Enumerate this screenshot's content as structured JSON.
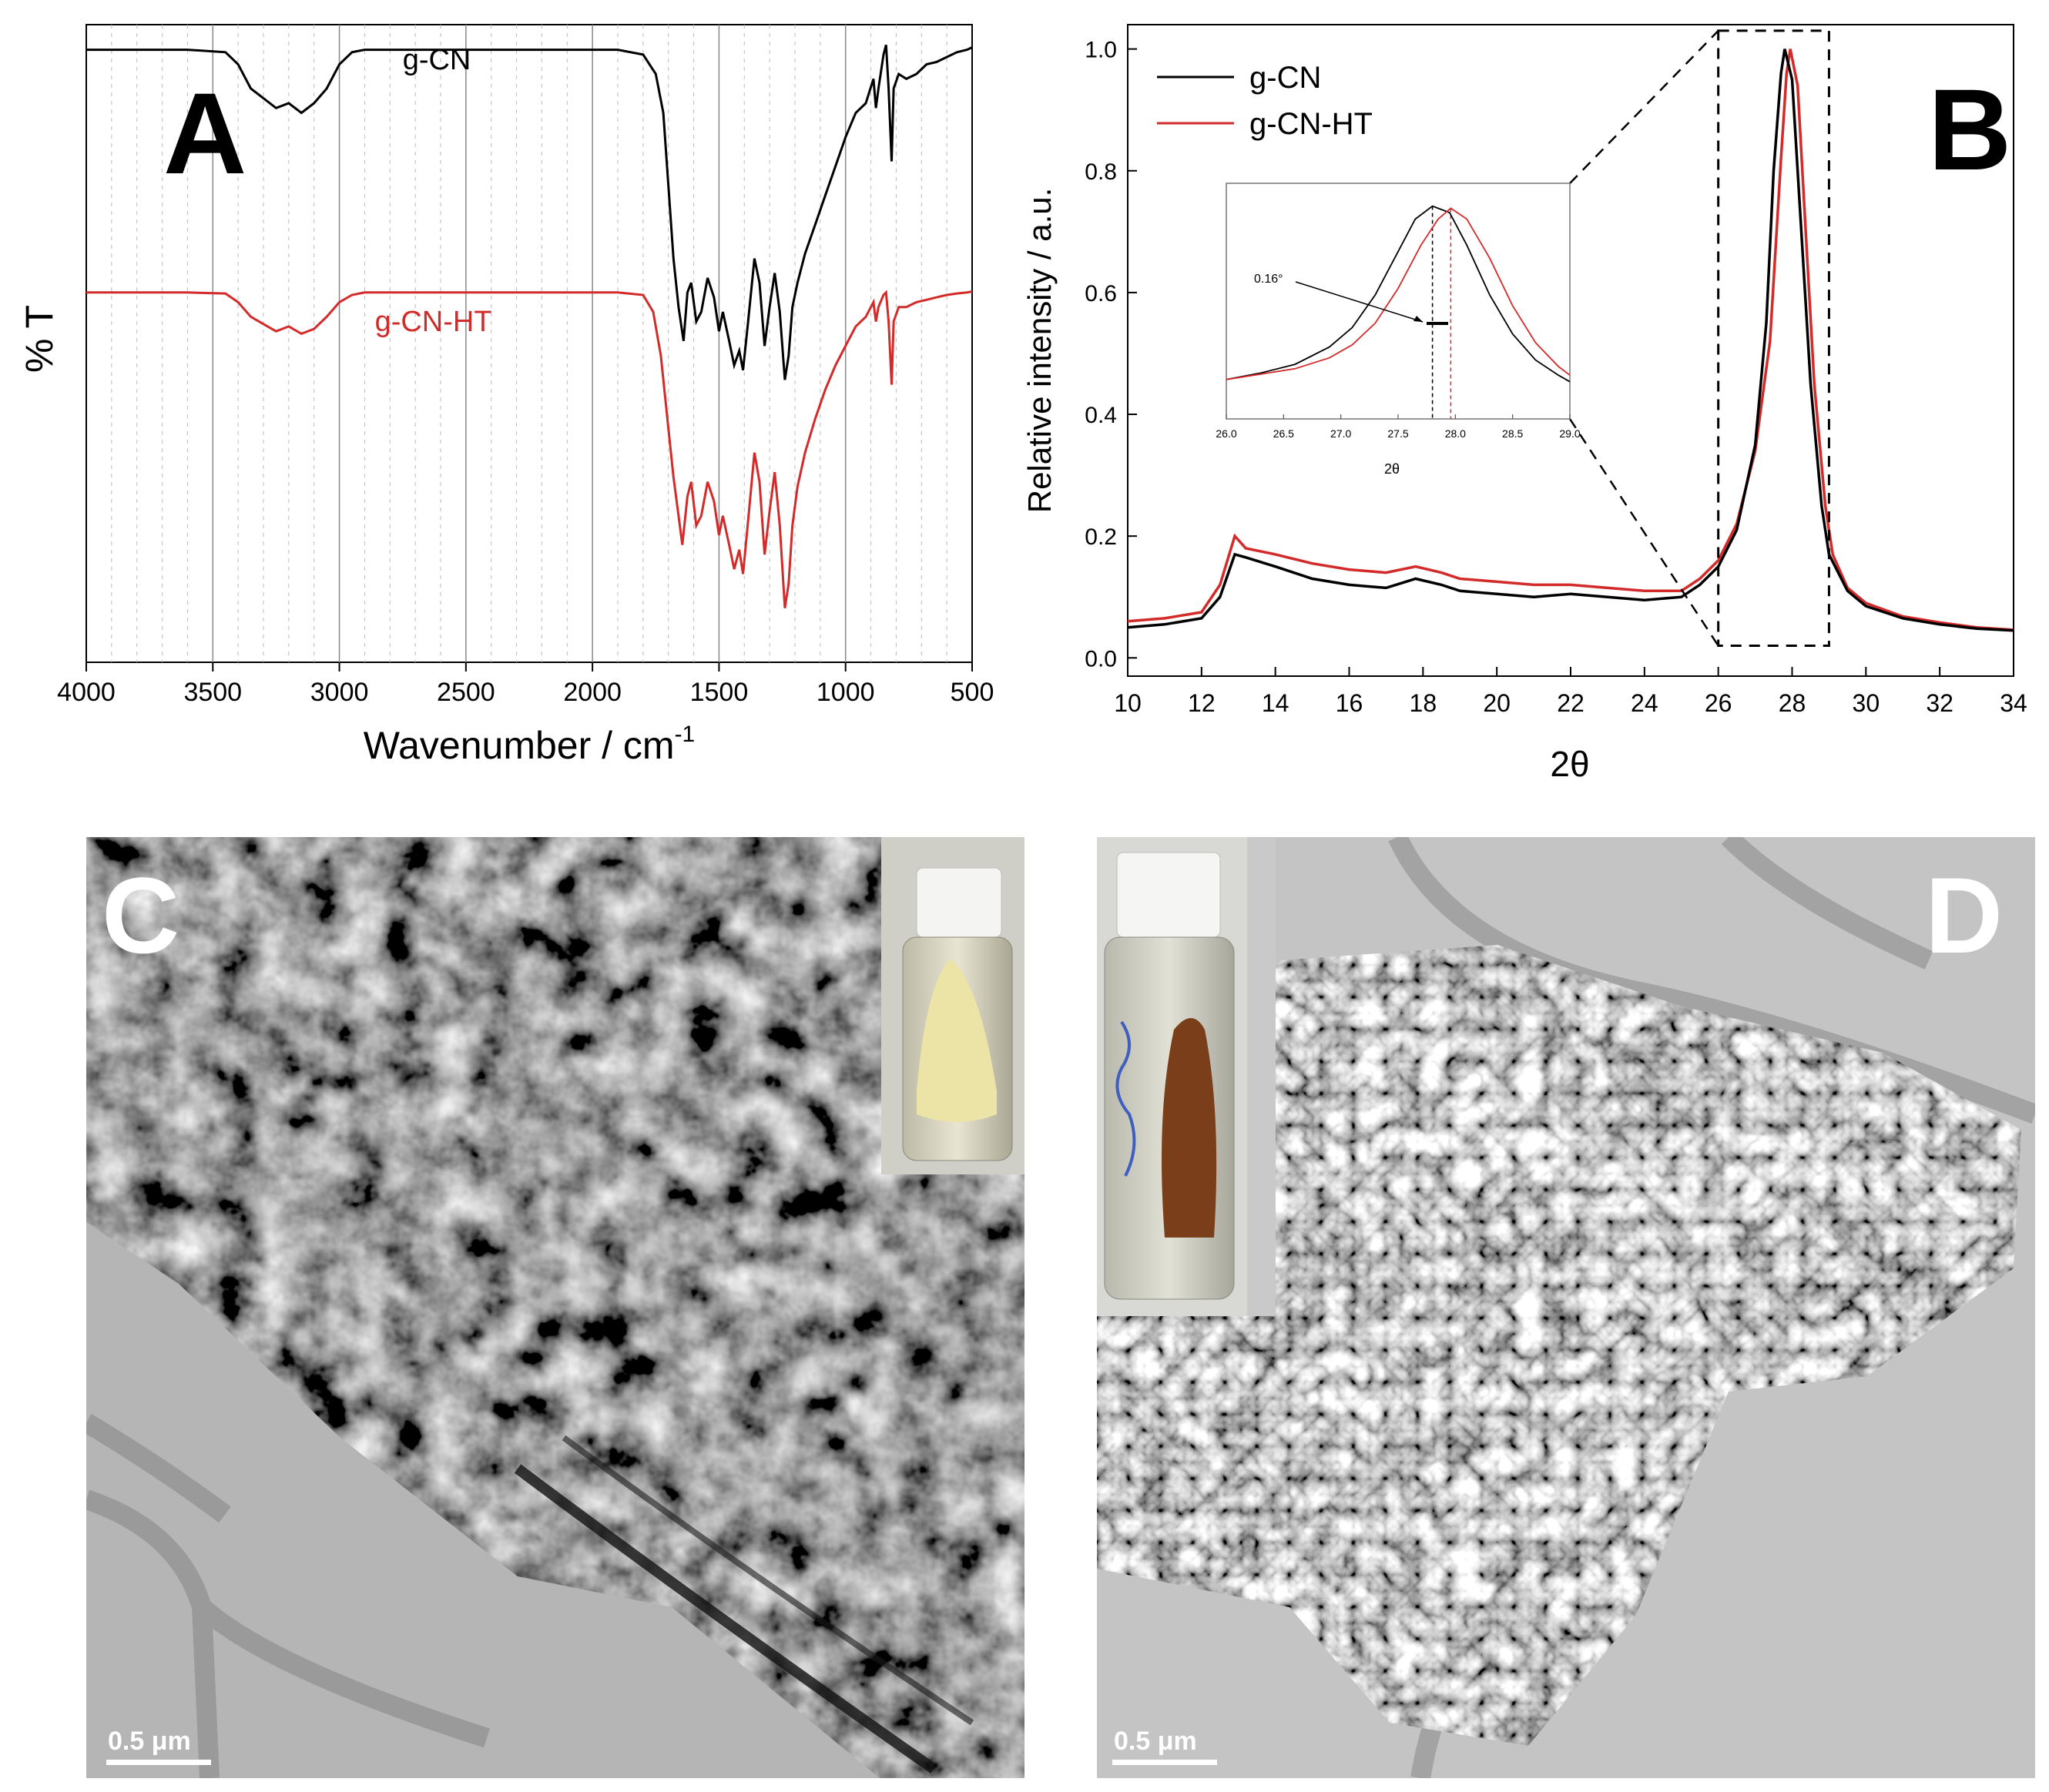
{
  "panel_a": {
    "letter": "A",
    "chart_data": {
      "type": "line",
      "title": "",
      "xlabel": "Wavenumber / cm",
      "xlabel_sup": "-1",
      "ylabel": "% T",
      "xlim": [
        4000,
        500
      ],
      "x_reversed": true,
      "xticks": [
        "4000",
        "3500",
        "3000",
        "2500",
        "2000",
        "1500",
        "1000",
        "500"
      ],
      "grid": "vertical",
      "series": [
        {
          "name": "g-CN",
          "color": "#000000",
          "label_at": [
            2750,
            0.94
          ],
          "points": [
            [
              4000,
              0.98
            ],
            [
              3600,
              0.98
            ],
            [
              3450,
              0.975
            ],
            [
              3400,
              0.95
            ],
            [
              3350,
              0.9
            ],
            [
              3300,
              0.88
            ],
            [
              3250,
              0.86
            ],
            [
              3200,
              0.87
            ],
            [
              3150,
              0.85
            ],
            [
              3100,
              0.87
            ],
            [
              3050,
              0.9
            ],
            [
              3000,
              0.95
            ],
            [
              2950,
              0.975
            ],
            [
              2900,
              0.98
            ],
            [
              2500,
              0.98
            ],
            [
              2200,
              0.98
            ],
            [
              1900,
              0.98
            ],
            [
              1800,
              0.97
            ],
            [
              1750,
              0.93
            ],
            [
              1720,
              0.85
            ],
            [
              1700,
              0.7
            ],
            [
              1680,
              0.55
            ],
            [
              1660,
              0.45
            ],
            [
              1640,
              0.38
            ],
            [
              1625,
              0.48
            ],
            [
              1610,
              0.5
            ],
            [
              1590,
              0.42
            ],
            [
              1570,
              0.44
            ],
            [
              1545,
              0.51
            ],
            [
              1520,
              0.47
            ],
            [
              1500,
              0.4
            ],
            [
              1485,
              0.44
            ],
            [
              1460,
              0.38
            ],
            [
              1440,
              0.33
            ],
            [
              1420,
              0.36
            ],
            [
              1405,
              0.32
            ],
            [
              1385,
              0.42
            ],
            [
              1360,
              0.55
            ],
            [
              1340,
              0.5
            ],
            [
              1320,
              0.37
            ],
            [
              1300,
              0.45
            ],
            [
              1280,
              0.52
            ],
            [
              1260,
              0.44
            ],
            [
              1240,
              0.3
            ],
            [
              1225,
              0.35
            ],
            [
              1210,
              0.45
            ],
            [
              1190,
              0.5
            ],
            [
              1160,
              0.56
            ],
            [
              1120,
              0.62
            ],
            [
              1080,
              0.68
            ],
            [
              1040,
              0.74
            ],
            [
              1000,
              0.8
            ],
            [
              960,
              0.85
            ],
            [
              920,
              0.87
            ],
            [
              890,
              0.92
            ],
            [
              880,
              0.86
            ],
            [
              870,
              0.9
            ],
            [
              850,
              0.97
            ],
            [
              840,
              0.99
            ],
            [
              830,
              0.9
            ],
            [
              818,
              0.75
            ],
            [
              810,
              0.9
            ],
            [
              790,
              0.93
            ],
            [
              760,
              0.92
            ],
            [
              720,
              0.93
            ],
            [
              680,
              0.95
            ],
            [
              640,
              0.955
            ],
            [
              600,
              0.965
            ],
            [
              560,
              0.975
            ],
            [
              520,
              0.98
            ],
            [
              500,
              0.985
            ]
          ]
        },
        {
          "name": "g-CN-HT",
          "color": "#d32a2a",
          "label_at": [
            2860,
            0.4
          ],
          "points": [
            [
              4000,
              0.48
            ],
            [
              3600,
              0.48
            ],
            [
              3450,
              0.478
            ],
            [
              3400,
              0.46
            ],
            [
              3350,
              0.43
            ],
            [
              3300,
              0.415
            ],
            [
              3250,
              0.4
            ],
            [
              3200,
              0.41
            ],
            [
              3150,
              0.395
            ],
            [
              3100,
              0.405
            ],
            [
              3050,
              0.43
            ],
            [
              3000,
              0.46
            ],
            [
              2950,
              0.475
            ],
            [
              2900,
              0.48
            ],
            [
              2500,
              0.48
            ],
            [
              2200,
              0.48
            ],
            [
              1900,
              0.48
            ],
            [
              1800,
              0.475
            ],
            [
              1760,
              0.44
            ],
            [
              1730,
              0.35
            ],
            [
              1700,
              0.2
            ],
            [
              1680,
              0.1
            ],
            [
              1660,
              0.02
            ],
            [
              1645,
              -0.04
            ],
            [
              1625,
              0.06
            ],
            [
              1610,
              0.09
            ],
            [
              1590,
              0.0
            ],
            [
              1570,
              0.02
            ],
            [
              1545,
              0.09
            ],
            [
              1520,
              0.05
            ],
            [
              1500,
              -0.02
            ],
            [
              1485,
              0.02
            ],
            [
              1460,
              -0.04
            ],
            [
              1440,
              -0.09
            ],
            [
              1420,
              -0.05
            ],
            [
              1405,
              -0.1
            ],
            [
              1385,
              0.01
            ],
            [
              1360,
              0.15
            ],
            [
              1340,
              0.09
            ],
            [
              1320,
              -0.06
            ],
            [
              1300,
              0.03
            ],
            [
              1280,
              0.11
            ],
            [
              1260,
              0.0
            ],
            [
              1240,
              -0.17
            ],
            [
              1225,
              -0.12
            ],
            [
              1210,
              0.0
            ],
            [
              1190,
              0.08
            ],
            [
              1160,
              0.15
            ],
            [
              1120,
              0.22
            ],
            [
              1080,
              0.28
            ],
            [
              1040,
              0.33
            ],
            [
              1000,
              0.37
            ],
            [
              960,
              0.41
            ],
            [
              920,
              0.43
            ],
            [
              890,
              0.46
            ],
            [
              880,
              0.42
            ],
            [
              870,
              0.45
            ],
            [
              850,
              0.475
            ],
            [
              840,
              0.48
            ],
            [
              830,
              0.42
            ],
            [
              818,
              0.29
            ],
            [
              810,
              0.42
            ],
            [
              790,
              0.45
            ],
            [
              760,
              0.45
            ],
            [
              720,
              0.46
            ],
            [
              680,
              0.465
            ],
            [
              640,
              0.47
            ],
            [
              600,
              0.475
            ],
            [
              560,
              0.478
            ],
            [
              520,
              0.48
            ],
            [
              500,
              0.482
            ]
          ]
        }
      ]
    }
  },
  "panel_b": {
    "letter": "B",
    "chart_data": {
      "type": "line",
      "title": "",
      "xlabel": "2θ",
      "ylabel": "Relative intensity / a.u.",
      "xlim": [
        10,
        34
      ],
      "ylim": [
        -0.03,
        1.04
      ],
      "xticks": [
        "10",
        "12",
        "14",
        "16",
        "18",
        "20",
        "22",
        "24",
        "26",
        "28",
        "30",
        "32",
        "34"
      ],
      "yticks": [
        "0.0",
        "0.2",
        "0.4",
        "0.6",
        "0.8",
        "1.0"
      ],
      "legend": "top-left",
      "series": [
        {
          "name": "g-CN",
          "color": "#000000",
          "points": [
            [
              10,
              0.05
            ],
            [
              11,
              0.055
            ],
            [
              12,
              0.065
            ],
            [
              12.5,
              0.1
            ],
            [
              12.9,
              0.17
            ],
            [
              13.2,
              0.165
            ],
            [
              14,
              0.15
            ],
            [
              15,
              0.13
            ],
            [
              16,
              0.12
            ],
            [
              17,
              0.115
            ],
            [
              17.8,
              0.13
            ],
            [
              18.5,
              0.12
            ],
            [
              19,
              0.11
            ],
            [
              20,
              0.105
            ],
            [
              21,
              0.1
            ],
            [
              22,
              0.105
            ],
            [
              23,
              0.1
            ],
            [
              24,
              0.095
            ],
            [
              25,
              0.1
            ],
            [
              25.5,
              0.12
            ],
            [
              26,
              0.15
            ],
            [
              26.5,
              0.21
            ],
            [
              27,
              0.35
            ],
            [
              27.3,
              0.55
            ],
            [
              27.5,
              0.8
            ],
            [
              27.7,
              0.96
            ],
            [
              27.8,
              1.0
            ],
            [
              28.0,
              0.95
            ],
            [
              28.2,
              0.75
            ],
            [
              28.5,
              0.45
            ],
            [
              28.8,
              0.25
            ],
            [
              29,
              0.17
            ],
            [
              29.5,
              0.11
            ],
            [
              30,
              0.085
            ],
            [
              31,
              0.065
            ],
            [
              32,
              0.055
            ],
            [
              33,
              0.048
            ],
            [
              34,
              0.045
            ]
          ]
        },
        {
          "name": "g-CN-HT",
          "color": "#d32a2a",
          "points": [
            [
              10,
              0.06
            ],
            [
              11,
              0.065
            ],
            [
              12,
              0.075
            ],
            [
              12.5,
              0.12
            ],
            [
              12.9,
              0.2
            ],
            [
              13.2,
              0.18
            ],
            [
              14,
              0.17
            ],
            [
              15,
              0.155
            ],
            [
              16,
              0.145
            ],
            [
              17,
              0.14
            ],
            [
              17.8,
              0.15
            ],
            [
              18.5,
              0.14
            ],
            [
              19,
              0.13
            ],
            [
              20,
              0.125
            ],
            [
              21,
              0.12
            ],
            [
              22,
              0.12
            ],
            [
              23,
              0.115
            ],
            [
              24,
              0.11
            ],
            [
              25,
              0.11
            ],
            [
              25.5,
              0.13
            ],
            [
              26,
              0.16
            ],
            [
              26.5,
              0.22
            ],
            [
              27,
              0.34
            ],
            [
              27.4,
              0.52
            ],
            [
              27.7,
              0.82
            ],
            [
              27.85,
              0.96
            ],
            [
              27.95,
              1.0
            ],
            [
              28.15,
              0.94
            ],
            [
              28.35,
              0.72
            ],
            [
              28.6,
              0.45
            ],
            [
              28.9,
              0.25
            ],
            [
              29.1,
              0.17
            ],
            [
              29.5,
              0.115
            ],
            [
              30,
              0.09
            ],
            [
              31,
              0.068
            ],
            [
              32,
              0.058
            ],
            [
              33,
              0.05
            ],
            [
              34,
              0.046
            ]
          ]
        }
      ],
      "zoom_box": {
        "x_range": [
          26.0,
          29.0
        ],
        "y_range": [
          0.02,
          1.03
        ]
      }
    },
    "inset": {
      "chart_data": {
        "type": "line",
        "xlabel": "2θ",
        "xlim": [
          26.0,
          29.0
        ],
        "xticks": [
          "26.0",
          "26.5",
          "27.0",
          "27.5",
          "28.0",
          "28.5",
          "29.0"
        ],
        "annotation": "0.16°",
        "peak_g_cn": 27.8,
        "peak_g_cn_ht": 27.96,
        "series": [
          {
            "name": "g-CN",
            "color": "#000000",
            "points": [
              [
                26.0,
                0.16
              ],
              [
                26.3,
                0.19
              ],
              [
                26.6,
                0.23
              ],
              [
                26.9,
                0.31
              ],
              [
                27.1,
                0.4
              ],
              [
                27.3,
                0.55
              ],
              [
                27.5,
                0.75
              ],
              [
                27.65,
                0.9
              ],
              [
                27.8,
                0.96
              ],
              [
                27.95,
                0.93
              ],
              [
                28.1,
                0.78
              ],
              [
                28.3,
                0.55
              ],
              [
                28.5,
                0.37
              ],
              [
                28.7,
                0.25
              ],
              [
                28.9,
                0.18
              ],
              [
                29.0,
                0.15
              ]
            ]
          },
          {
            "name": "g-CN-HT",
            "color": "#d32a2a",
            "points": [
              [
                26.0,
                0.16
              ],
              [
                26.3,
                0.185
              ],
              [
                26.6,
                0.21
              ],
              [
                26.9,
                0.26
              ],
              [
                27.1,
                0.32
              ],
              [
                27.3,
                0.42
              ],
              [
                27.5,
                0.58
              ],
              [
                27.7,
                0.78
              ],
              [
                27.85,
                0.9
              ],
              [
                27.96,
                0.95
              ],
              [
                28.1,
                0.9
              ],
              [
                28.3,
                0.72
              ],
              [
                28.5,
                0.5
              ],
              [
                28.7,
                0.33
              ],
              [
                28.9,
                0.22
              ],
              [
                29.0,
                0.18
              ]
            ]
          }
        ]
      }
    }
  },
  "panel_c": {
    "letter": "C",
    "scalebar": "0.5 μm"
  },
  "panel_d": {
    "letter": "D",
    "scalebar": "0.5 μm"
  }
}
